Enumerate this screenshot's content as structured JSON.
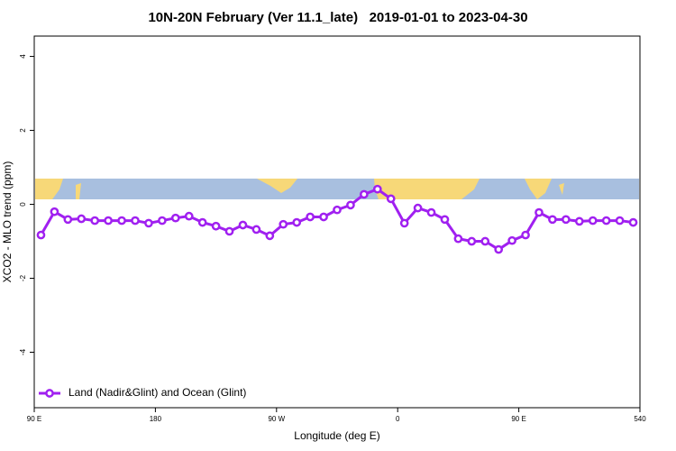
{
  "chart_data": {
    "type": "line",
    "title": "10N-20N February (Ver 11.1_late)   2019-01-01 to 2023-04-30",
    "x_label": "Longitude (deg E)",
    "y_label": "XCO2 - MLO trend (ppm)",
    "x": [
      95,
      105,
      115,
      125,
      135,
      145,
      155,
      165,
      175,
      185,
      195,
      205,
      215,
      225,
      235,
      245,
      255,
      265,
      275,
      285,
      295,
      305,
      315,
      325,
      335,
      345,
      355,
      365,
      375,
      385,
      395,
      405,
      415,
      425,
      435,
      445,
      455,
      465,
      475,
      485,
      495,
      505,
      515,
      525,
      535
    ],
    "series": [
      {
        "name": "Land (Nadir&Glint) and Ocean (Glint)",
        "color": "#a020f0",
        "values": [
          -0.83,
          -0.2,
          -0.41,
          -0.39,
          -0.44,
          -0.44,
          -0.44,
          -0.44,
          -0.51,
          -0.44,
          -0.37,
          -0.32,
          -0.49,
          -0.59,
          -0.73,
          -0.56,
          -0.68,
          -0.85,
          -0.54,
          -0.49,
          -0.34,
          -0.34,
          -0.15,
          -0.02,
          0.27,
          0.41,
          0.15,
          -0.51,
          -0.1,
          -0.22,
          -0.41,
          -0.93,
          -1.0,
          -1.0,
          -1.22,
          -0.98,
          -0.83,
          -0.22,
          -0.41,
          -0.41,
          -0.46,
          -0.44,
          -0.44,
          -0.44,
          -0.49
        ]
      }
    ],
    "xlim": [
      90,
      540
    ],
    "xticks": [
      {
        "value": 90,
        "label": "90 E"
      },
      180,
      {
        "value": 270,
        "label": "90 W"
      },
      {
        "value": 360,
        "label": "0"
      },
      {
        "value": 450,
        "label": "90 E"
      },
      540
    ],
    "ylim": [
      -5.5,
      4.55
    ],
    "yticks": [
      -4,
      -2,
      0,
      2,
      4
    ],
    "legend": "bottom-left"
  }
}
